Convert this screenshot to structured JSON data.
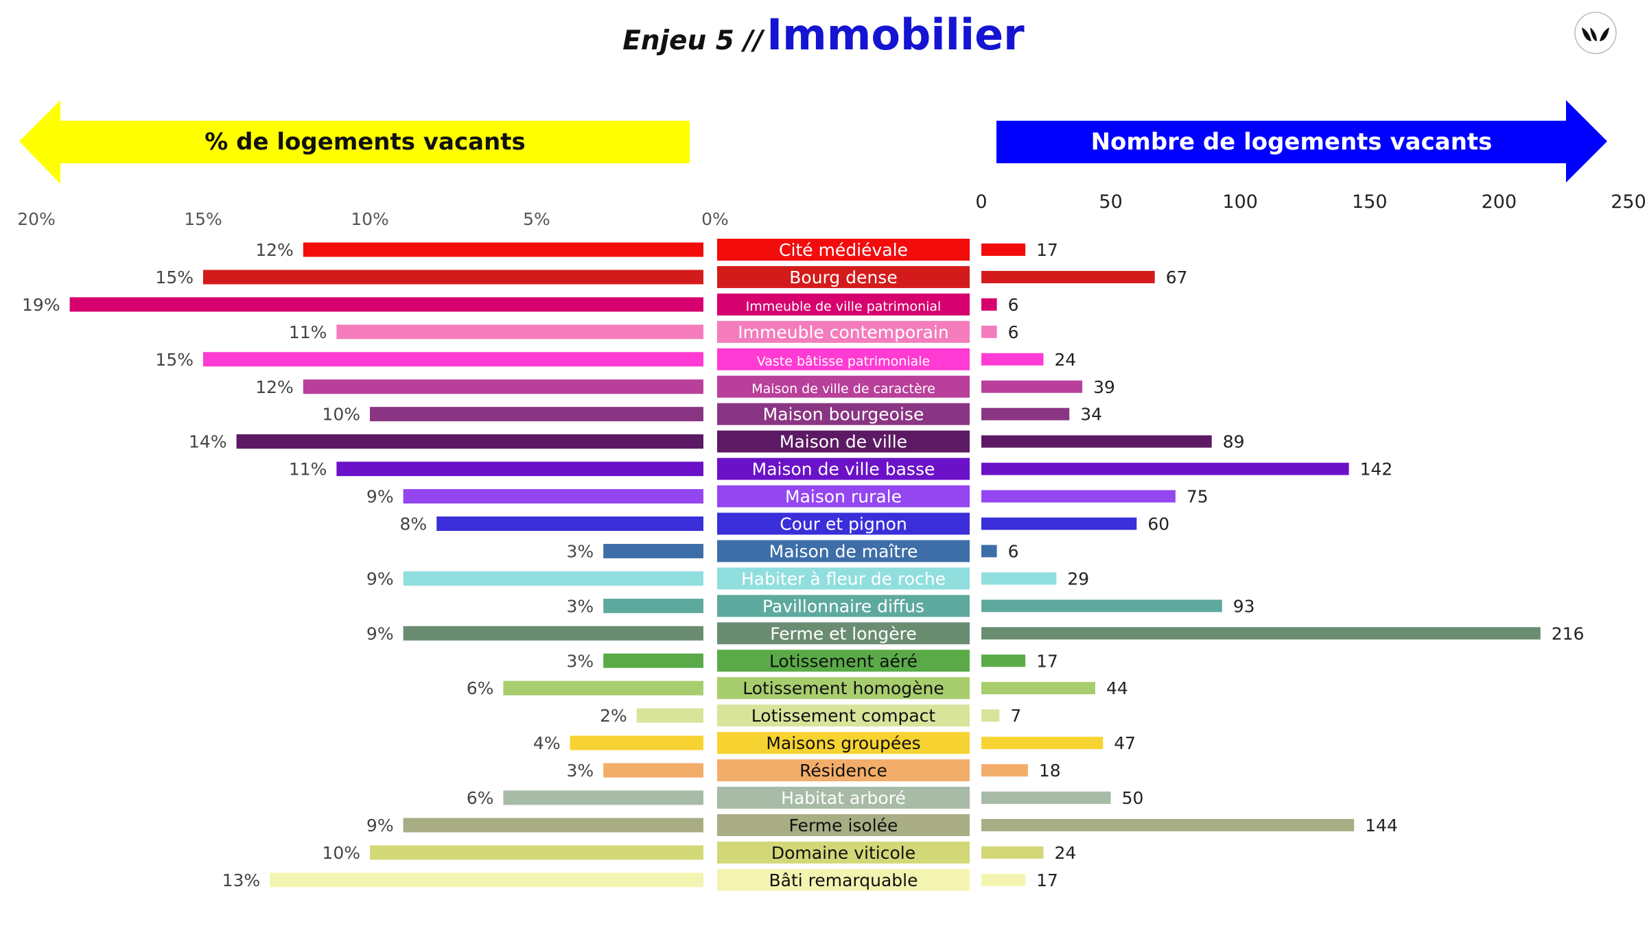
{
  "header": {
    "title_prefix": "Enjeu 5 //",
    "title_main": "Immobilier"
  },
  "logo": {
    "icon": "brand-logo-icon"
  },
  "colors": {
    "left_arrow": "#ffff00",
    "right_arrow": "#0000ff",
    "title_main": "#1414d2"
  },
  "chart_data": {
    "type": "bar",
    "layout": "butterfly",
    "title": "Immobilier",
    "left": {
      "header": "% de logements vacants",
      "unit": "%",
      "ticks": [
        "20%",
        "15%",
        "10%",
        "5%",
        "0%"
      ],
      "xlim": [
        0,
        20
      ]
    },
    "right": {
      "header": "Nombre de logements vacants",
      "ticks": [
        "0",
        "50",
        "100",
        "150",
        "200",
        "250"
      ],
      "xlim": [
        0,
        250
      ]
    },
    "categories": [
      {
        "label": "Cité médiévale",
        "pct": 12,
        "count": 17,
        "color": "#f20c0c",
        "text": "#ffffff"
      },
      {
        "label": "Bourg dense",
        "pct": 15,
        "count": 67,
        "color": "#d41b1b",
        "text": "#ffffff"
      },
      {
        "label": "Immeuble de ville patrimonial",
        "pct": 19,
        "count": 6,
        "color": "#d6006e",
        "text": "#ffffff"
      },
      {
        "label": "Immeuble contemporain",
        "pct": 11,
        "count": 6,
        "color": "#f47cbc",
        "text": "#ffffff"
      },
      {
        "label": "Vaste bâtisse patrimoniale",
        "pct": 15,
        "count": 24,
        "color": "#ff3bd3",
        "text": "#ffffff"
      },
      {
        "label": "Maison de ville de caractère",
        "pct": 12,
        "count": 39,
        "color": "#b83f9a",
        "text": "#ffffff"
      },
      {
        "label": "Maison bourgeoise",
        "pct": 10,
        "count": 34,
        "color": "#8a3583",
        "text": "#ffffff"
      },
      {
        "label": "Maison de ville",
        "pct": 14,
        "count": 89,
        "color": "#5c1a64",
        "text": "#ffffff"
      },
      {
        "label": "Maison de ville basse",
        "pct": 11,
        "count": 142,
        "color": "#6b12c8",
        "text": "#ffffff"
      },
      {
        "label": "Maison rurale",
        "pct": 9,
        "count": 75,
        "color": "#9446f0",
        "text": "#ffffff"
      },
      {
        "label": "Cour et pignon",
        "pct": 8,
        "count": 60,
        "color": "#3a2fd9",
        "text": "#ffffff"
      },
      {
        "label": "Maison de maître",
        "pct": 3,
        "count": 6,
        "color": "#3e6ea8",
        "text": "#ffffff"
      },
      {
        "label": "Habiter à fleur de roche",
        "pct": 9,
        "count": 29,
        "color": "#91dede",
        "text": "#ffffff"
      },
      {
        "label": "Pavillonnaire diffus",
        "pct": 3,
        "count": 93,
        "color": "#5ea99e",
        "text": "#ffffff"
      },
      {
        "label": "Ferme et longère",
        "pct": 9,
        "count": 216,
        "color": "#6a8d72",
        "text": "#ffffff"
      },
      {
        "label": "Lotissement aéré",
        "pct": 3,
        "count": 17,
        "color": "#5aab48",
        "text": "#111111"
      },
      {
        "label": "Lotissement homogène",
        "pct": 6,
        "count": 44,
        "color": "#a8cd6e",
        "text": "#111111"
      },
      {
        "label": "Lotissement compact",
        "pct": 2,
        "count": 7,
        "color": "#d8e49a",
        "text": "#111111"
      },
      {
        "label": "Maisons groupées",
        "pct": 4,
        "count": 47,
        "color": "#f7d332",
        "text": "#111111"
      },
      {
        "label": "Résidence",
        "pct": 3,
        "count": 18,
        "color": "#f3ad6a",
        "text": "#111111"
      },
      {
        "label": "Habitat arboré",
        "pct": 6,
        "count": 50,
        "color": "#a7bba6",
        "text": "#ffffff"
      },
      {
        "label": "Ferme isolée",
        "pct": 9,
        "count": 144,
        "color": "#a9ad84",
        "text": "#111111"
      },
      {
        "label": "Domaine viticole",
        "pct": 10,
        "count": 24,
        "color": "#d2d877",
        "text": "#111111"
      },
      {
        "label": "Bâti remarquable",
        "pct": 13,
        "count": 17,
        "color": "#f4f4b2",
        "text": "#111111"
      }
    ]
  }
}
